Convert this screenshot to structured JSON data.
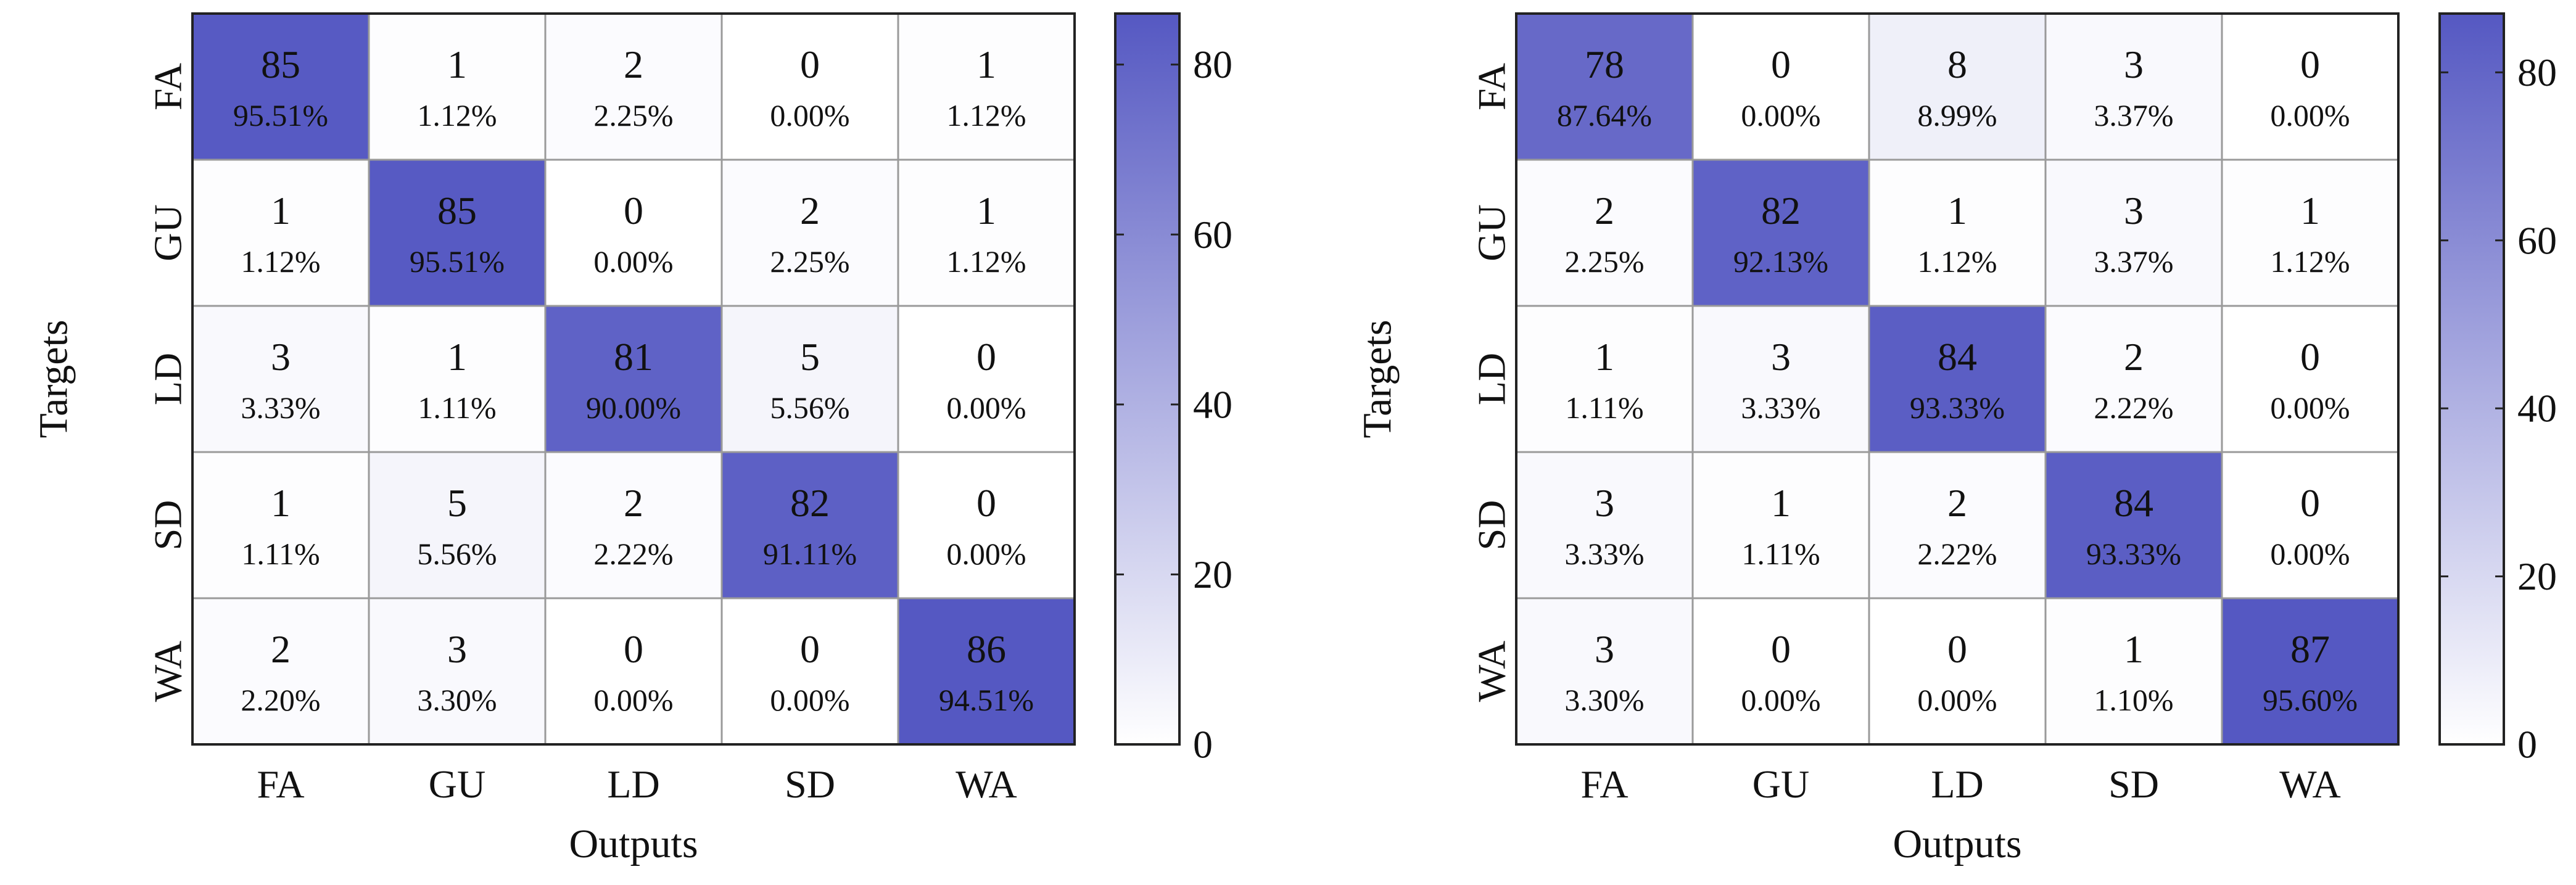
{
  "colors": {
    "low": "#ffffff",
    "high": "#5558c2",
    "grid": "#9a9a9a",
    "frame": "#222222",
    "text": "#111111"
  },
  "chart_data": [
    {
      "type": "heatmap",
      "title": "",
      "xlabel": "Outputs",
      "ylabel": "Targets",
      "x_categories": [
        "FA",
        "GU",
        "LD",
        "SD",
        "WA"
      ],
      "y_categories": [
        "FA",
        "GU",
        "LD",
        "SD",
        "WA"
      ],
      "counts": [
        [
          85,
          1,
          2,
          0,
          1
        ],
        [
          1,
          85,
          0,
          2,
          1
        ],
        [
          3,
          1,
          81,
          5,
          0
        ],
        [
          1,
          5,
          2,
          82,
          0
        ],
        [
          2,
          3,
          0,
          0,
          86
        ]
      ],
      "percentages": [
        [
          "95.51%",
          "1.12%",
          "2.25%",
          "0.00%",
          "1.12%"
        ],
        [
          "1.12%",
          "95.51%",
          "0.00%",
          "2.25%",
          "1.12%"
        ],
        [
          "3.33%",
          "1.11%",
          "90.00%",
          "5.56%",
          "0.00%"
        ],
        [
          "1.11%",
          "5.56%",
          "2.22%",
          "91.11%",
          "0.00%"
        ],
        [
          "2.20%",
          "3.30%",
          "0.00%",
          "0.00%",
          "94.51%"
        ]
      ],
      "colorbar": {
        "range": [
          0,
          86
        ],
        "ticks": [
          0,
          20,
          40,
          60,
          80
        ]
      }
    },
    {
      "type": "heatmap",
      "title": "",
      "xlabel": "Outputs",
      "ylabel": "Targets",
      "x_categories": [
        "FA",
        "GU",
        "LD",
        "SD",
        "WA"
      ],
      "y_categories": [
        "FA",
        "GU",
        "LD",
        "SD",
        "WA"
      ],
      "counts": [
        [
          78,
          0,
          8,
          3,
          0
        ],
        [
          2,
          82,
          1,
          3,
          1
        ],
        [
          1,
          3,
          84,
          2,
          0
        ],
        [
          3,
          1,
          2,
          84,
          0
        ],
        [
          3,
          0,
          0,
          1,
          87
        ]
      ],
      "percentages": [
        [
          "87.64%",
          "0.00%",
          "8.99%",
          "3.37%",
          "0.00%"
        ],
        [
          "2.25%",
          "92.13%",
          "1.12%",
          "3.37%",
          "1.12%"
        ],
        [
          "1.11%",
          "3.33%",
          "93.33%",
          "2.22%",
          "0.00%"
        ],
        [
          "3.33%",
          "1.11%",
          "2.22%",
          "93.33%",
          "0.00%"
        ],
        [
          "3.30%",
          "0.00%",
          "0.00%",
          "1.10%",
          "95.60%"
        ]
      ],
      "colorbar": {
        "range": [
          0,
          87
        ],
        "ticks": [
          0,
          20,
          40,
          60,
          80
        ]
      }
    }
  ]
}
